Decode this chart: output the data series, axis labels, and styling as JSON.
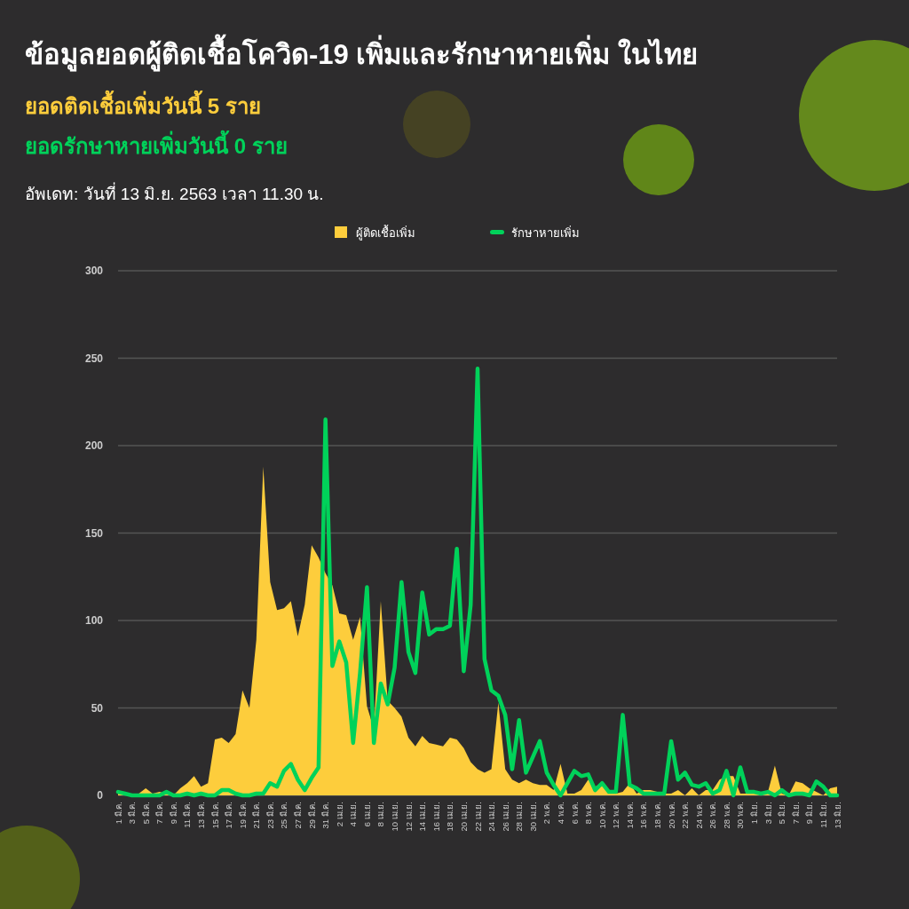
{
  "chart_data": {
    "type": "area",
    "title": "ข้อมูลยอดผู้ติดเชื้อโควิด-19 เพิ่มและรักษาหายเพิ่ม ในไทย",
    "subtitle": "ยอดติดเชื้อเพิ่มวันนี้ 5 ราย",
    "annotations": [
      "ยอดรักษาหายเพิ่มวันนี้ 0 ราย",
      "อัพเดท: วันที่ 13 มิ.ย. 2563 เวลา 11.30 น."
    ],
    "categories": [
      "1 มี.ค.",
      null,
      "3 มี.ค.",
      null,
      "5 มี.ค.",
      null,
      "7 มี.ค.",
      null,
      "9 มี.ค.",
      null,
      "11 มี.ค.",
      null,
      "13 มี.ค.",
      null,
      "15 มี.ค.",
      null,
      "17 มี.ค.",
      null,
      "19 มี.ค.",
      null,
      "21 มี.ค.",
      null,
      "23 มี.ค.",
      null,
      "25 มี.ค.",
      null,
      "27 มี.ค.",
      null,
      "29 มี.ค.",
      null,
      "31 มี.ค.",
      null,
      "2 เม.ย.",
      null,
      "4 เม.ย.",
      null,
      "6 เม.ย.",
      null,
      "8 เม.ย.",
      null,
      "10 เม.ย.",
      null,
      "12 เม.ย.",
      null,
      "14 เม.ย.",
      null,
      "16 เม.ย.",
      null,
      "18 เม.ย.",
      null,
      "20 เม.ย.",
      null,
      "22 เม.ย.",
      null,
      "24 เม.ย.",
      null,
      "26 เม.ย.",
      null,
      "28 เม.ย.",
      null,
      "30 เม.ย.",
      null,
      "2 พ.ค.",
      null,
      "4 พ.ค.",
      null,
      "6 พ.ค.",
      null,
      "8 พ.ค.",
      null,
      "10 พ.ค.",
      null,
      "12 พ.ค.",
      null,
      "14 พ.ค.",
      null,
      "16 พ.ค.",
      null,
      "18 พ.ค.",
      null,
      "20 พ.ค.",
      null,
      "22 พ.ค.",
      null,
      "24 พ.ค.",
      null,
      "26 พ.ค.",
      null,
      "28 พ.ค.",
      null,
      "30 พ.ค.",
      null,
      "1 มิ.ย.",
      null,
      "3 มิ.ย.",
      null,
      "5 มิ.ย.",
      null,
      "7 มิ.ย.",
      null,
      "9 มิ.ย.",
      null,
      "11 มิ.ย.",
      null,
      "13 มิ.ย."
    ],
    "series": [
      {
        "name": "ผู้ติดเชื้อเพิ่ม",
        "color": "#fdcd3c",
        "values": [
          1,
          1,
          0,
          1,
          4,
          1,
          2,
          1,
          0,
          4,
          7,
          11,
          5,
          7,
          32,
          33,
          30,
          35,
          60,
          50,
          89,
          188,
          122,
          106,
          107,
          111,
          91,
          109,
          143,
          136,
          127,
          120,
          104,
          103,
          89,
          102,
          51,
          38,
          111,
          54,
          50,
          45,
          33,
          28,
          34,
          30,
          29,
          28,
          33,
          32,
          27,
          19,
          15,
          13,
          15,
          53,
          15,
          9,
          7,
          9,
          7,
          6,
          6,
          3,
          18,
          1,
          1,
          3,
          9,
          5,
          7,
          3,
          1,
          2,
          7,
          1,
          3,
          3,
          2,
          1,
          1,
          3,
          0,
          4,
          0,
          3,
          3,
          9,
          11,
          11,
          1,
          1,
          1,
          1,
          2,
          17,
          1,
          0,
          8,
          7,
          4,
          2,
          0,
          4,
          5
        ]
      },
      {
        "name": "รักษาหายเพิ่ม",
        "type": "line",
        "color": "#00d25a",
        "values": [
          2,
          1,
          0,
          0,
          0,
          0,
          0,
          2,
          0,
          0,
          1,
          0,
          1,
          0,
          0,
          3,
          3,
          1,
          0,
          0,
          1,
          1,
          7,
          5,
          14,
          18,
          9,
          3,
          10,
          16,
          215,
          74,
          88,
          76,
          30,
          70,
          119,
          30,
          64,
          52,
          73,
          122,
          82,
          70,
          116,
          92,
          95,
          95,
          97,
          141,
          71,
          109,
          244,
          78,
          60,
          57,
          46,
          15,
          43,
          13,
          22,
          31,
          13,
          6,
          0,
          7,
          14,
          11,
          12,
          3,
          7,
          2,
          2,
          46,
          6,
          4,
          1,
          1,
          1,
          1,
          31,
          9,
          13,
          6,
          5,
          7,
          1,
          3,
          14,
          0,
          16,
          2,
          2,
          1,
          2,
          0,
          3,
          0,
          1,
          1,
          0,
          8,
          5,
          0,
          0
        ]
      }
    ],
    "ylim": [
      0,
      300
    ],
    "yticks": [
      0,
      50,
      100,
      150,
      200,
      250,
      300
    ],
    "grid": "y",
    "legend": "top",
    "marker": "none",
    "line_style": "solid"
  }
}
